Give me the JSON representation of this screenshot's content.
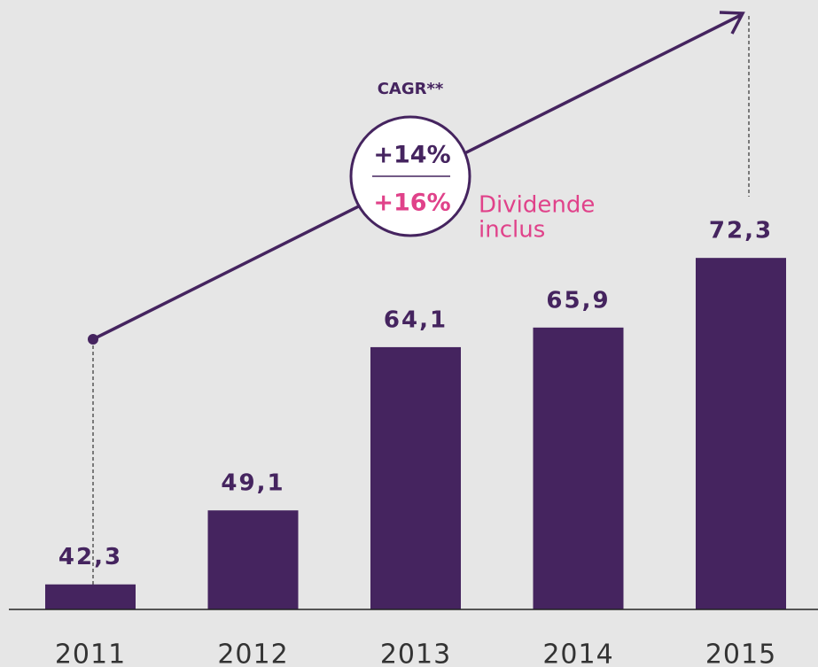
{
  "chart_data": {
    "type": "bar",
    "categories": [
      "2011",
      "2012",
      "2013",
      "2014",
      "2015"
    ],
    "values": [
      42.3,
      49.1,
      64.1,
      65.9,
      72.3
    ],
    "value_labels": [
      "42,3",
      "49,1",
      "64,1",
      "65,9",
      "72,3"
    ],
    "color": "#45245f",
    "ylim": [
      40,
      96
    ],
    "annotations": {
      "cagr_title": "CAGR**",
      "cagr": "+14%",
      "cagr_dividend": "+16%",
      "dividend_note": [
        "Dividende",
        "inclus"
      ]
    }
  }
}
